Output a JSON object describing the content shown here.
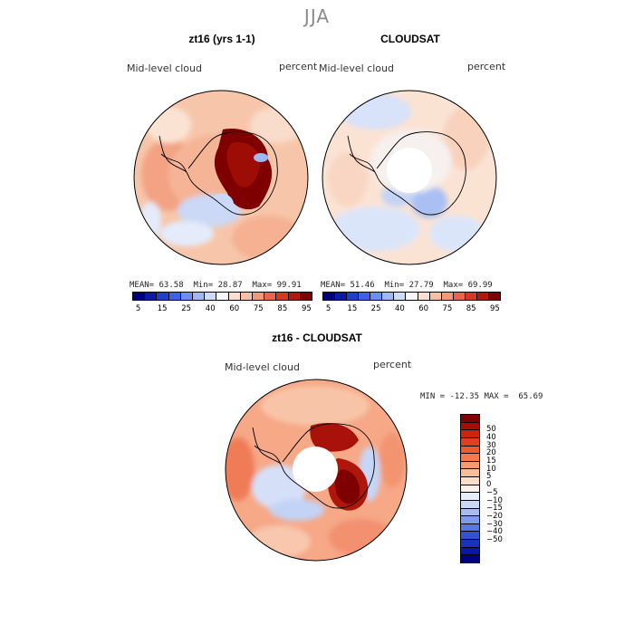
{
  "season": "JJA",
  "panels": [
    {
      "title": "zt16 (yrs 1-1)",
      "variable": "Mid-level cloud",
      "units": "percent",
      "stats": {
        "mean_label": "MEAN=",
        "mean": "63.58",
        "min_label": "Min=",
        "min": "28.87",
        "max_label": "Max=",
        "max": "99.91"
      }
    },
    {
      "title": "CLOUDSAT",
      "variable": "Mid-level cloud",
      "units": "percent",
      "stats": {
        "mean_label": "MEAN=",
        "mean": "51.46",
        "min_label": "Min=",
        "min": "27.79",
        "max_label": "Max=",
        "max": "69.99"
      }
    }
  ],
  "abs_colorbar": {
    "colors": [
      "#00007f",
      "#0b1d9e",
      "#1f40c8",
      "#3b63e8",
      "#6a8ff0",
      "#9fb8f4",
      "#cfdcf8",
      "#f7f7f7",
      "#fbe0d0",
      "#f7c0a2",
      "#f19a75",
      "#e8664a",
      "#d33a1f",
      "#b01a0c",
      "#7f0000"
    ],
    "labels": [
      "5",
      "15",
      "25",
      "40",
      "60",
      "75",
      "85",
      "95"
    ]
  },
  "diff_panel": {
    "title": "zt16 - CLOUDSAT",
    "variable": "Mid-level cloud",
    "units": "percent",
    "minmax_text": "MIN = -12.35 MAX =  65.69"
  },
  "diff_colorbar": {
    "colors": [
      "#7f0000",
      "#a80d05",
      "#c8250e",
      "#e0401b",
      "#ef5a2a",
      "#f47a4a",
      "#f79a72",
      "#f9bc9c",
      "#fcdcc7",
      "#fbf1ea",
      "#e6eefb",
      "#c8d7f7",
      "#a7bdf2",
      "#7f9cec",
      "#5677e4",
      "#3353d6",
      "#1a33bf",
      "#0a17a0",
      "#00007f"
    ],
    "labels": [
      "50",
      "40",
      "30",
      "20",
      "15",
      "10",
      "5",
      "0",
      "−5",
      "−10",
      "−15",
      "−20",
      "−30",
      "−40",
      "−50"
    ]
  }
}
